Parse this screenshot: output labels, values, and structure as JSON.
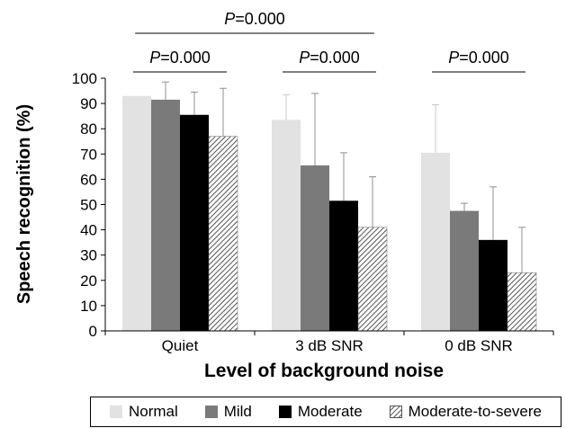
{
  "chart_data": {
    "type": "bar",
    "ylabel": "Speech recognition (%)",
    "xlabel": "Level of background noise",
    "ylim": [
      0,
      100
    ],
    "yticks": [
      0,
      10,
      20,
      30,
      40,
      50,
      60,
      70,
      80,
      90,
      100
    ],
    "categories": [
      "Quiet",
      "3 dB SNR",
      "0 dB SNR"
    ],
    "series": [
      {
        "name": "Normal",
        "color": "#e2e2e2",
        "pattern": "solid",
        "values": [
          93,
          83.5,
          70.5
        ],
        "error_upper": [
          93,
          93.5,
          89.5
        ]
      },
      {
        "name": "Mild",
        "color": "#7a7a7a",
        "pattern": "solid",
        "values": [
          91.5,
          65.5,
          47.5
        ],
        "error_upper": [
          98.5,
          94,
          50.5
        ]
      },
      {
        "name": "Moderate",
        "color": "#000000",
        "pattern": "solid",
        "values": [
          85.5,
          51.5,
          36
        ],
        "error_upper": [
          94.5,
          70.5,
          57
        ]
      },
      {
        "name": "Moderate-to-severe",
        "color": "#555555",
        "pattern": "hatch",
        "values": [
          77,
          41,
          23
        ],
        "error_upper": [
          96,
          61,
          41
        ]
      }
    ],
    "annotations": [
      {
        "text": "P=0.000",
        "level": "top",
        "spans": [
          0,
          2
        ]
      },
      {
        "text": "P=0.000",
        "level": "group",
        "spans": [
          0,
          0
        ]
      },
      {
        "text": "P=0.000",
        "level": "group",
        "spans": [
          1,
          1
        ]
      },
      {
        "text": "P=0.000",
        "level": "group",
        "spans": [
          2,
          2
        ]
      }
    ],
    "legend_position": "bottom"
  }
}
